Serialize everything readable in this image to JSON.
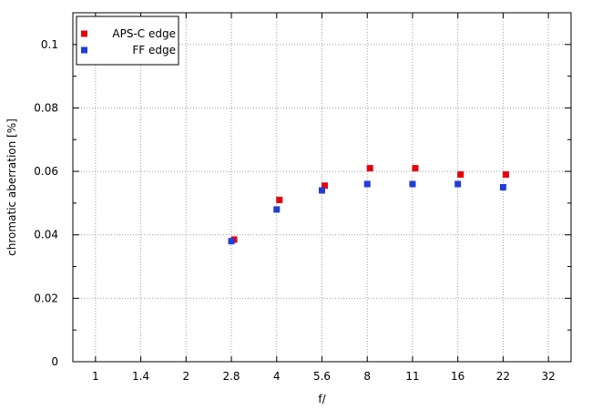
{
  "chart_data": {
    "type": "scatter",
    "xlabel": "f/",
    "ylabel": "chromatic aberration [%]",
    "categories": [
      "1",
      "1.4",
      "2",
      "2.8",
      "4",
      "5.6",
      "8",
      "11",
      "16",
      "22",
      "32"
    ],
    "ylim": [
      0,
      0.11
    ],
    "yticks": [
      0,
      0.02,
      0.04,
      0.06,
      0.08,
      0.1
    ],
    "ytick_labels": [
      "0",
      "0.02",
      "0.04",
      "0.06",
      "0.08",
      "0.1"
    ],
    "grid": true,
    "legend_position": "top-left",
    "series": [
      {
        "name": "APS-C edge",
        "color": "#e8000b",
        "points": [
          {
            "x": "2.8",
            "y": 0.0385
          },
          {
            "x": "4",
            "y": 0.051
          },
          {
            "x": "5.6",
            "y": 0.0555
          },
          {
            "x": "8",
            "y": 0.061
          },
          {
            "x": "11",
            "y": 0.061
          },
          {
            "x": "16",
            "y": 0.059
          },
          {
            "x": "22",
            "y": 0.059
          }
        ]
      },
      {
        "name": "FF edge",
        "color": "#1f3fd6",
        "points": [
          {
            "x": "2.8",
            "y": 0.038
          },
          {
            "x": "4",
            "y": 0.048
          },
          {
            "x": "5.6",
            "y": 0.054
          },
          {
            "x": "8",
            "y": 0.056
          },
          {
            "x": "11",
            "y": 0.056
          },
          {
            "x": "16",
            "y": 0.056
          },
          {
            "x": "22",
            "y": 0.055
          }
        ]
      }
    ]
  }
}
